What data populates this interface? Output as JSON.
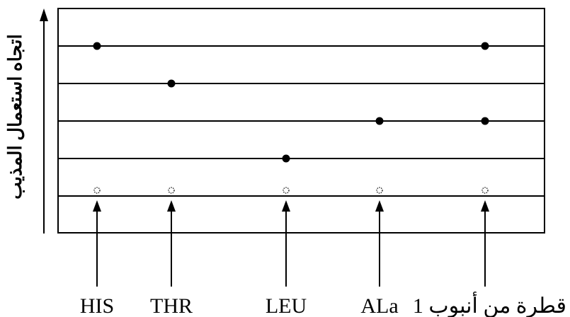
{
  "axis": {
    "label": "اتجاه استعمال المذيب"
  },
  "columns": [
    {
      "label": "HIS",
      "spots_at_row": [
        1
      ]
    },
    {
      "label": "THR",
      "spots_at_row": [
        2
      ]
    },
    {
      "label": "LEU",
      "spots_at_row": [
        4
      ]
    },
    {
      "label": "ALa",
      "spots_at_row": [
        3
      ]
    },
    {
      "label": "قطرة من أنبوب 1",
      "spots_at_row": [
        1,
        3
      ]
    }
  ],
  "colors": {
    "ink": "#000000",
    "background": "#ffffff"
  }
}
